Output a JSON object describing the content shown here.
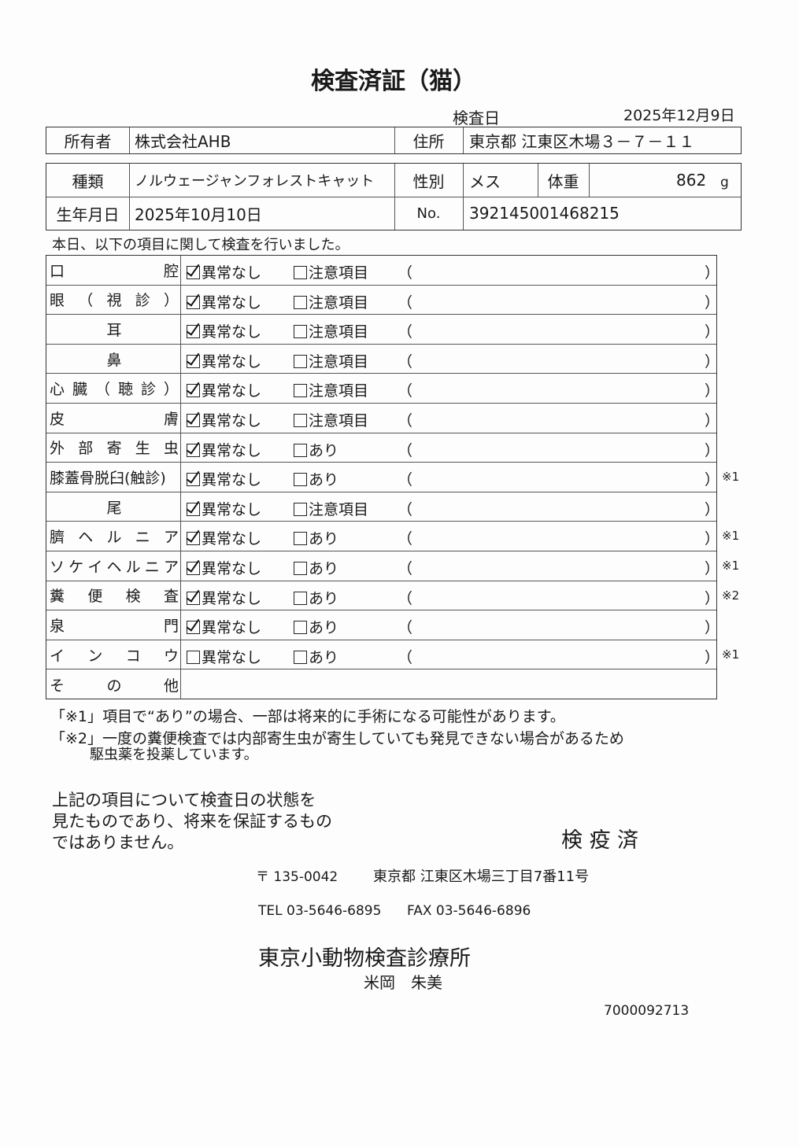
{
  "title": "検査済証（猫）",
  "exam_date_label": "検査日",
  "exam_date": "2025年12月9日",
  "owner": {
    "label": "所有者",
    "value": "株式会社AHB",
    "address_label": "住所",
    "address": "東京都 江東区木場３－７－１１"
  },
  "pet": {
    "breed_label": "種類",
    "breed": "ノルウェージャンフォレストキャット",
    "sex_label": "性別",
    "sex": "メス",
    "weight_label": "体重",
    "weight": "862",
    "weight_unit": "g",
    "dob_label": "生年月日",
    "dob": "2025年10月10日",
    "no_label": "No.",
    "no": "392145001468215"
  },
  "intro": "本日、以下の項目に関して検査を行いました。",
  "items": [
    {
      "label": [
        "口",
        "腔"
      ],
      "ok": "異常なし",
      "ok_checked": true,
      "alt": "注意項目",
      "alt_checked": false,
      "note": ""
    },
    {
      "label": [
        "眼",
        "（",
        "視",
        "診",
        "）"
      ],
      "ok": "異常なし",
      "ok_checked": true,
      "alt": "注意項目",
      "alt_checked": false,
      "note": ""
    },
    {
      "label": [
        "耳"
      ],
      "center": true,
      "ok": "異常なし",
      "ok_checked": true,
      "alt": "注意項目",
      "alt_checked": false,
      "note": ""
    },
    {
      "label": [
        "鼻"
      ],
      "center": true,
      "ok": "異常なし",
      "ok_checked": true,
      "alt": "注意項目",
      "alt_checked": false,
      "note": ""
    },
    {
      "label": [
        "心",
        "臓",
        "（",
        "聴",
        "診",
        "）"
      ],
      "ok": "異常なし",
      "ok_checked": true,
      "alt": "注意項目",
      "alt_checked": false,
      "note": ""
    },
    {
      "label": [
        "皮",
        "膚"
      ],
      "ok": "異常なし",
      "ok_checked": true,
      "alt": "注意項目",
      "alt_checked": false,
      "note": ""
    },
    {
      "label": [
        "外",
        "部",
        "寄",
        "生",
        "虫"
      ],
      "ok": "異常なし",
      "ok_checked": true,
      "alt": "あり",
      "alt_checked": false,
      "note": ""
    },
    {
      "label": [
        "膝蓋骨脱臼(触診)"
      ],
      "ok": "異常なし",
      "ok_checked": true,
      "alt": "あり",
      "alt_checked": false,
      "note": "※1"
    },
    {
      "label": [
        "尾"
      ],
      "center": true,
      "ok": "異常なし",
      "ok_checked": true,
      "alt": "注意項目",
      "alt_checked": false,
      "note": ""
    },
    {
      "label": [
        "臍",
        "ヘ",
        "ル",
        "ニ",
        "ア"
      ],
      "ok": "異常なし",
      "ok_checked": true,
      "alt": "あり",
      "alt_checked": false,
      "note": "※1"
    },
    {
      "label": [
        "ソ",
        "ケ",
        "イ",
        "ヘ",
        "ル",
        "ニ",
        "ア"
      ],
      "ok": "異常なし",
      "ok_checked": true,
      "alt": "あり",
      "alt_checked": false,
      "note": "※1"
    },
    {
      "label": [
        "糞",
        "便",
        "検",
        "査"
      ],
      "ok": "異常なし",
      "ok_checked": true,
      "alt": "あり",
      "alt_checked": false,
      "note": "※2"
    },
    {
      "label": [
        "泉",
        "門"
      ],
      "ok": "異常なし",
      "ok_checked": true,
      "alt": "あり",
      "alt_checked": false,
      "note": ""
    },
    {
      "label": [
        "イ",
        "ン",
        "コ",
        "ウ"
      ],
      "ok": "異常なし",
      "ok_checked": false,
      "alt": "あり",
      "alt_checked": false,
      "note": "※1"
    }
  ],
  "other_label": [
    "そ",
    "の",
    "他"
  ],
  "paren_open": "（",
  "paren_close": "）",
  "footnote1": "「※1」項目で“あり”の場合、一部は将来的に手術になる可能性があります。",
  "footnote2": "「※2」一度の糞便検査では内部寄生虫が寄生していても発見できない場合があるため",
  "footnote2b": "駆虫薬を投薬しています。",
  "disclaimer": [
    "上記の項目について検査日の状態を",
    "見たものであり、将来を保証するもの",
    "ではありません。"
  ],
  "stamp": "検 疫 済",
  "postal": "〒 135-0042",
  "clinic_address": "東京都 江東区木場三丁目7番11号",
  "tel": "TEL 03-5646-6895",
  "fax": "FAX 03-5646-6896",
  "clinic_name": "東京小動物検査診療所",
  "doctor": "米岡　朱美",
  "doc_number": "7000092713"
}
